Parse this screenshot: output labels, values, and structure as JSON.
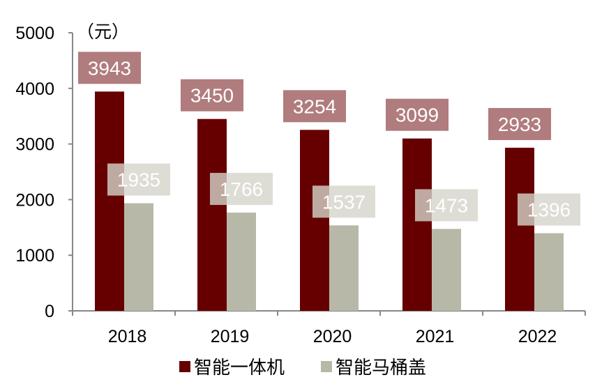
{
  "chart_data": {
    "type": "bar",
    "unit_label": "（元）",
    "categories": [
      "2018",
      "2019",
      "2020",
      "2021",
      "2022"
    ],
    "series": [
      {
        "name": "智能一体机",
        "values": [
          3943,
          3450,
          3254,
          3099,
          2933
        ],
        "color": "#660000",
        "label_box_color": "#b07c7d"
      },
      {
        "name": "智能马桶盖",
        "values": [
          1935,
          1766,
          1537,
          1473,
          1396
        ],
        "color": "#b8b8a8",
        "label_box_color": "#d6d4cb"
      }
    ],
    "ylim": [
      0,
      5000
    ],
    "yticks": [
      "0",
      "1000",
      "2000",
      "3000",
      "4000",
      "5000"
    ],
    "grid": false,
    "legend_position": "bottom"
  }
}
